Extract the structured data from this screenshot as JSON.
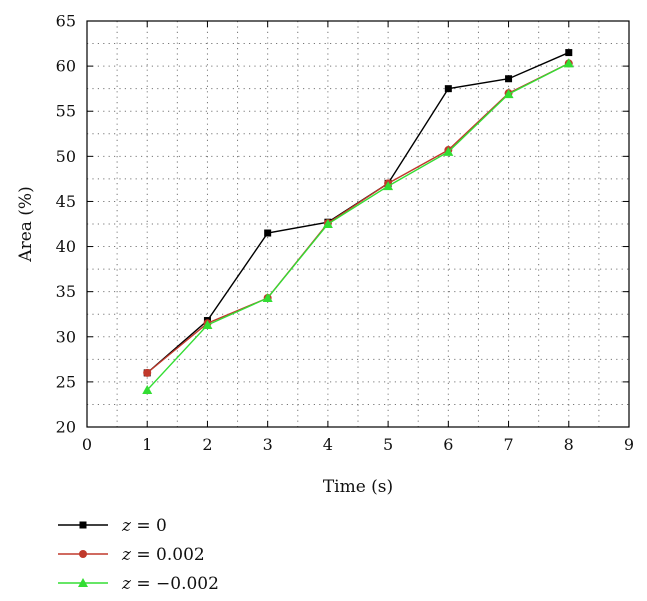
{
  "chart_data": {
    "type": "line",
    "xlabel": "Time (s)",
    "ylabel": "Area (%)",
    "xlim": [
      0,
      9
    ],
    "ylim": [
      20,
      65
    ],
    "xticks": [
      0,
      1,
      2,
      3,
      4,
      5,
      6,
      7,
      8,
      9
    ],
    "yticks": [
      20,
      25,
      30,
      35,
      40,
      45,
      50,
      55,
      60,
      65
    ],
    "grid": true,
    "legend_position": "bottom-left",
    "x": [
      1,
      2,
      3,
      4,
      5,
      6,
      7,
      8
    ],
    "series": [
      {
        "var": "z",
        "eq": " = ",
        "num": "0",
        "color": "#000000",
        "marker": "square",
        "values": [
          26.0,
          31.8,
          41.5,
          42.7,
          47.0,
          57.5,
          58.6,
          61.5
        ]
      },
      {
        "var": "z",
        "eq": " = ",
        "num": "0.002",
        "color": "#c0392b",
        "marker": "circle",
        "values": [
          26.0,
          31.5,
          34.3,
          42.6,
          47.0,
          50.7,
          57.0,
          60.3
        ]
      },
      {
        "var": "z",
        "eq": " = ",
        "num": "−0.002",
        "color": "#33dd33",
        "marker": "triangle",
        "values": [
          24.1,
          31.3,
          34.3,
          42.5,
          46.7,
          50.5,
          56.9,
          60.3
        ]
      }
    ]
  }
}
